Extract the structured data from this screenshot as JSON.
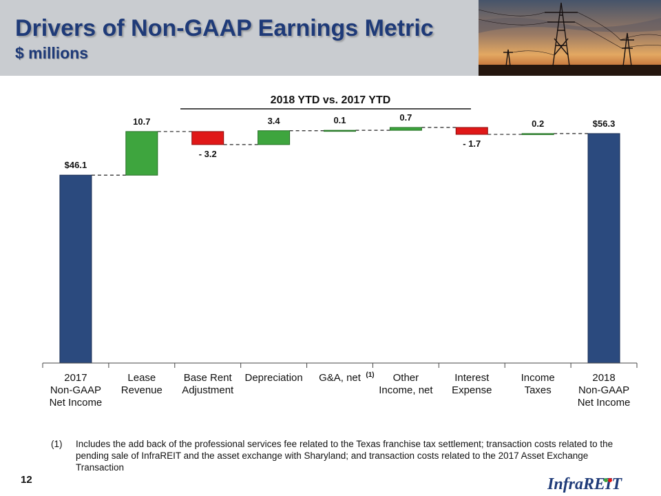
{
  "header": {
    "title": "Drivers of Non-GAAP Earnings Metric",
    "subtitle": "$ millions"
  },
  "page_number": "12",
  "footnote": {
    "marker": "(1)",
    "text": "Includes the add back of the professional services fee related to the Texas franchise tax settlement; transaction costs related to the pending sale of InfraREIT and the asset exchange with Sharyland; and transaction costs related to the 2017 Asset Exchange Transaction"
  },
  "logo_text": "InfraREIT",
  "colors": {
    "total": "#2b4a7e",
    "increase": "#3ea53e",
    "decrease": "#e01818",
    "title": "#1e3a78"
  },
  "chart_data": {
    "type": "waterfall",
    "title": "2018 YTD vs. 2017 YTD",
    "ylim": [
      0,
      60
    ],
    "footnote_marker": "(1)",
    "categories": [
      [
        "2017",
        "Non-GAAP",
        "Net Income"
      ],
      [
        "Lease",
        "Revenue"
      ],
      [
        "Base Rent",
        "Adjustment"
      ],
      [
        "Depreciation"
      ],
      [
        "G&A, net"
      ],
      [
        "Other",
        "Income, net"
      ],
      [
        "Interest",
        "Expense"
      ],
      [
        "Income",
        "Taxes"
      ],
      [
        "2018",
        "Non-GAAP",
        "Net Income"
      ]
    ],
    "values": [
      46.1,
      10.7,
      -3.2,
      3.4,
      0.1,
      0.7,
      -1.7,
      0.2,
      56.3
    ],
    "kinds": [
      "total",
      "increase",
      "decrease",
      "increase",
      "increase",
      "increase",
      "decrease",
      "increase",
      "total"
    ],
    "labels": [
      "$46.1",
      "10.7",
      "- 3.2",
      "3.4",
      "0.1",
      "0.7",
      "- 1.7",
      "0.2",
      "$56.3"
    ]
  }
}
